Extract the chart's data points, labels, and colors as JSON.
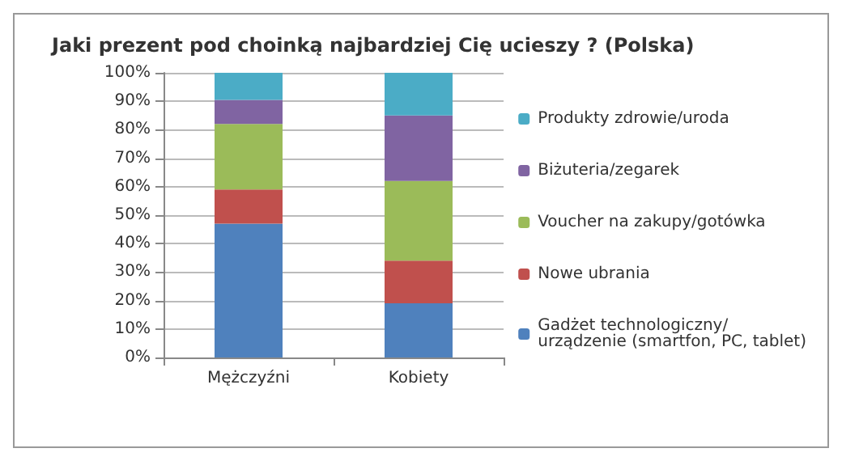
{
  "chart_data": {
    "type": "bar",
    "title": "Jaki prezent pod choinką najbardziej Cię ucieszy ? (Polska)",
    "categories": [
      "Mężczyźni",
      "Kobiety"
    ],
    "stacked": true,
    "ylim": [
      0,
      100
    ],
    "yticks": [
      {
        "value": 0,
        "label": "0%"
      },
      {
        "value": 10,
        "label": "10%"
      },
      {
        "value": 20,
        "label": "20%"
      },
      {
        "value": 30,
        "label": "30%"
      },
      {
        "value": 40,
        "label": "40%"
      },
      {
        "value": 50,
        "label": "50%"
      },
      {
        "value": 60,
        "label": "60%"
      },
      {
        "value": 70,
        "label": "70%"
      },
      {
        "value": 80,
        "label": "80%"
      },
      {
        "value": 90,
        "label": "90%"
      },
      {
        "value": 100,
        "label": "100%"
      }
    ],
    "grid": "y",
    "legend": "right",
    "series": [
      {
        "name": "Gadżet technologiczny/urządzenie (smartfon, PC, tablet)",
        "color": "#4f81bd",
        "values": [
          47,
          19
        ]
      },
      {
        "name": "Nowe ubrania",
        "color": "#c0504d",
        "values": [
          12,
          15
        ]
      },
      {
        "name": "Voucher na zakupy/gotówka",
        "color": "#9bbb59",
        "values": [
          23,
          28
        ]
      },
      {
        "name": "Biżuteria/zegarek",
        "color": "#8064a2",
        "values": [
          8.5,
          23
        ]
      },
      {
        "name": "Produkty zdrowie/uroda",
        "color": "#4bacc6",
        "values": [
          9.5,
          15
        ]
      }
    ]
  }
}
